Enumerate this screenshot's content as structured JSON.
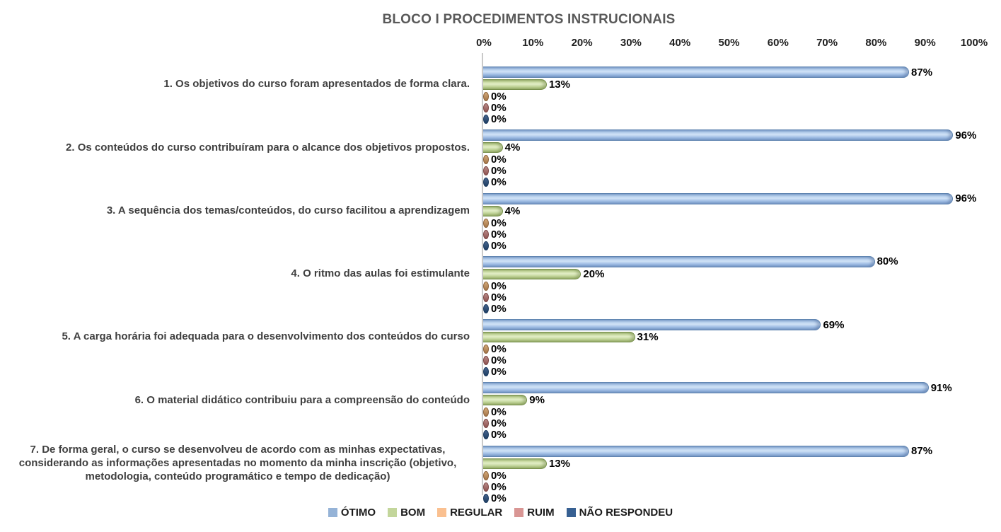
{
  "chart_data": {
    "type": "bar",
    "orientation": "horizontal",
    "title": "BLOCO I PROCEDIMENTOS INSTRUCIONAIS",
    "categories": [
      "1. Os objetivos do curso foram apresentados de forma clara.",
      "2. Os conteúdos do curso contribuíram para o alcance dos objetivos propostos.",
      "3. A sequência dos temas/conteúdos, do curso facilitou a aprendizagem",
      "4. O ritmo das aulas foi estimulante",
      "5. A carga horária foi adequada para o desenvolvimento dos conteúdos do curso",
      "6. O material didático contribuiu para a compreensão do conteúdo",
      "7. De forma geral, o curso se desenvolveu de acordo com as minhas expectativas, considerando as informações apresentadas no momento da minha inscrição (objetivo, metodologia, conteúdo programático e tempo de dedicação)"
    ],
    "series": [
      {
        "name": "ÓTIMO",
        "color": "#95B3D7",
        "values": [
          87,
          96,
          96,
          80,
          69,
          91,
          87
        ]
      },
      {
        "name": "BOM",
        "color": "#C3D69B",
        "values": [
          13,
          4,
          4,
          20,
          31,
          9,
          13
        ]
      },
      {
        "name": "REGULAR",
        "color": "#FAC090",
        "values": [
          0,
          0,
          0,
          0,
          0,
          0,
          0
        ]
      },
      {
        "name": "RUIM",
        "color": "#D99694",
        "values": [
          0,
          0,
          0,
          0,
          0,
          0,
          0
        ]
      },
      {
        "name": "NÃO RESPONDEU",
        "color": "#376092",
        "values": [
          0,
          0,
          0,
          0,
          0,
          0,
          0
        ]
      }
    ],
    "value_label_format": "{v}%",
    "x_axis": {
      "min": 0,
      "max": 100,
      "position": "top",
      "ticks": [
        "0%",
        "10%",
        "20%",
        "30%",
        "40%",
        "50%",
        "60%",
        "70%",
        "80%",
        "90%",
        "100%"
      ]
    },
    "legend": {
      "position": "bottom",
      "entries": [
        "ÓTIMO",
        "BOM",
        "REGULAR",
        "RUIM",
        "NÃO RESPONDEU"
      ]
    },
    "grid": false,
    "value_labels": true
  }
}
